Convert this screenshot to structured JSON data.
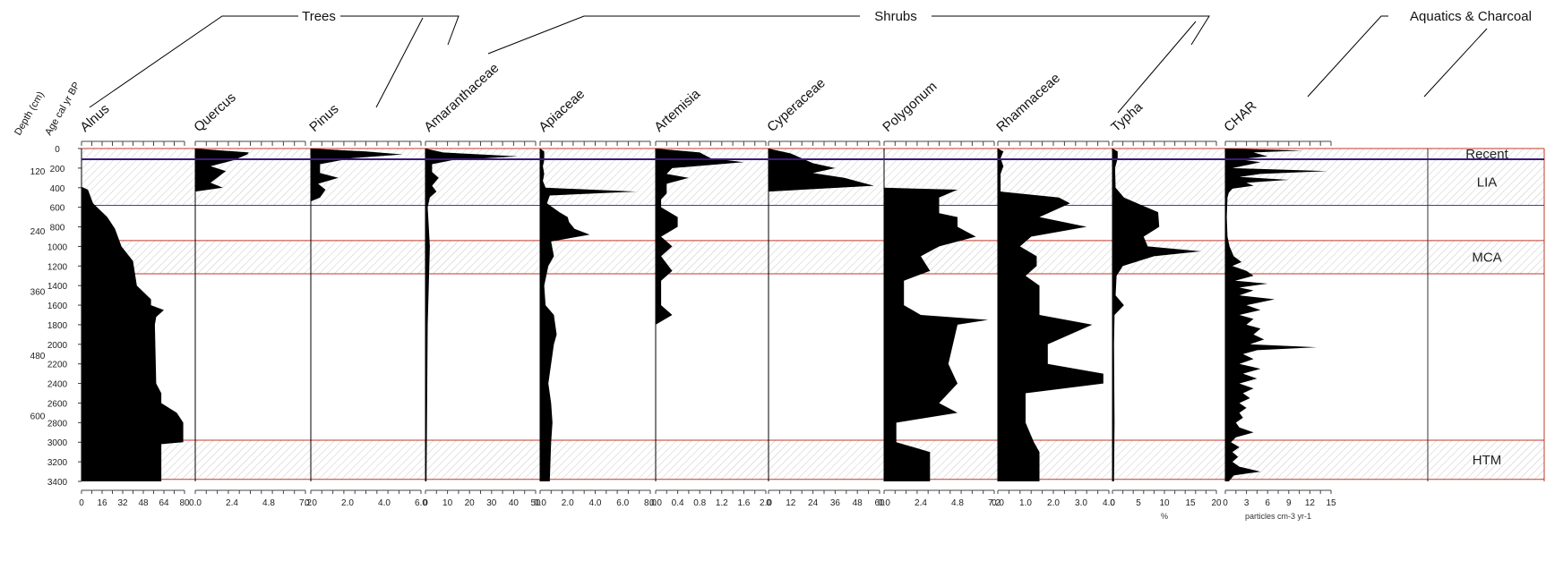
{
  "chart_data": {
    "type": "area",
    "y_axis_titles": [
      "Depth (cm)",
      "Age cal yr BP"
    ],
    "depth_ticks": [
      "120",
      "240",
      "360",
      "480",
      "600"
    ],
    "age_ticks": [
      "0",
      "200",
      "400",
      "600",
      "800",
      "1000",
      "1200",
      "1400",
      "1600",
      "1800",
      "2000",
      "2200",
      "2400",
      "2600",
      "2800",
      "3000",
      "3200",
      "3400"
    ],
    "age_range": [
      0,
      3400
    ],
    "groups": [
      {
        "label": "Trees",
        "from_panel": 0,
        "to_panel": 2
      },
      {
        "label": "Shrubs",
        "from_panel": 3,
        "to_panel": 8
      },
      {
        "label": "Aquatics & Charcoal",
        "from_panel": 9,
        "to_panel": 10
      }
    ],
    "zones": [
      {
        "label": "Recent",
        "from_age": 0,
        "to_age": 110,
        "color": "#c0392b"
      },
      {
        "label": "LIA",
        "from_age": 110,
        "to_age": 580,
        "color": "#3a3ad0"
      },
      {
        "label": "MCA",
        "from_age": 940,
        "to_age": 1280,
        "color": "#c0392b"
      },
      {
        "label": "HTM",
        "from_age": 2980,
        "to_age": 3380,
        "color": "#c0392b"
      }
    ],
    "recent_line_color": "#3b1a7a",
    "panels": [
      {
        "name": "Alnus",
        "ticks": [
          "0",
          "16",
          "32",
          "48",
          "64",
          "80"
        ],
        "max": 80,
        "profile": [
          [
            0,
            0
          ],
          [
            390,
            0
          ],
          [
            420,
            5
          ],
          [
            560,
            9
          ],
          [
            700,
            20
          ],
          [
            820,
            26
          ],
          [
            1000,
            31
          ],
          [
            1150,
            40
          ],
          [
            1400,
            43
          ],
          [
            1540,
            54
          ],
          [
            1600,
            54
          ],
          [
            1650,
            64
          ],
          [
            1720,
            58
          ],
          [
            1800,
            57
          ],
          [
            2400,
            58
          ],
          [
            2500,
            62
          ],
          [
            2600,
            62
          ],
          [
            2700,
            74
          ],
          [
            2800,
            79
          ],
          [
            3000,
            79
          ],
          [
            3020,
            62
          ],
          [
            3400,
            62
          ]
        ]
      },
      {
        "name": "Quercus",
        "ticks": [
          "0.0",
          "2.4",
          "4.8",
          "7.2"
        ],
        "max": 7.2,
        "profile": [
          [
            0,
            0
          ],
          [
            40,
            3.5
          ],
          [
            60,
            3.4
          ],
          [
            120,
            2.5
          ],
          [
            180,
            1.0
          ],
          [
            230,
            2.0
          ],
          [
            290,
            1.5
          ],
          [
            350,
            1.0
          ],
          [
            400,
            1.8
          ],
          [
            440,
            0
          ],
          [
            3400,
            0
          ]
        ]
      },
      {
        "name": "Pinus",
        "ticks": [
          "0.0",
          "2.0",
          "4.0",
          "6.0"
        ],
        "max": 6.0,
        "profile": [
          [
            0,
            0
          ],
          [
            30,
            3.0
          ],
          [
            60,
            5.0
          ],
          [
            100,
            2.2
          ],
          [
            160,
            0.5
          ],
          [
            250,
            0.5
          ],
          [
            300,
            1.5
          ],
          [
            360,
            0.4
          ],
          [
            420,
            0.8
          ],
          [
            500,
            0.5
          ],
          [
            540,
            0
          ],
          [
            3400,
            0
          ]
        ]
      },
      {
        "name": "Amaranthaceae",
        "ticks": [
          "0",
          "10",
          "20",
          "30",
          "40",
          "50"
        ],
        "max": 50,
        "profile": [
          [
            0,
            0
          ],
          [
            40,
            8
          ],
          [
            80,
            42
          ],
          [
            120,
            12
          ],
          [
            160,
            3
          ],
          [
            240,
            3
          ],
          [
            300,
            6
          ],
          [
            380,
            3
          ],
          [
            440,
            5
          ],
          [
            500,
            2
          ],
          [
            600,
            1
          ],
          [
            1000,
            2
          ],
          [
            1800,
            1
          ],
          [
            3400,
            0.5
          ]
        ]
      },
      {
        "name": "Apiaceae",
        "ticks": [
          "0.0",
          "2.0",
          "4.0",
          "6.0",
          "8.0"
        ],
        "max": 8.0,
        "profile": [
          [
            0,
            0
          ],
          [
            30,
            0.3
          ],
          [
            120,
            0.3
          ],
          [
            180,
            0.2
          ],
          [
            260,
            0.3
          ],
          [
            330,
            0.2
          ],
          [
            400,
            0.4
          ],
          [
            440,
            7.0
          ],
          [
            480,
            0.7
          ],
          [
            560,
            0.5
          ],
          [
            650,
            1.4
          ],
          [
            700,
            2.0
          ],
          [
            750,
            2.1
          ],
          [
            820,
            2.5
          ],
          [
            880,
            3.6
          ],
          [
            950,
            0.8
          ],
          [
            1100,
            1.0
          ],
          [
            1200,
            0.6
          ],
          [
            1400,
            0.3
          ],
          [
            1600,
            0.4
          ],
          [
            1700,
            1.0
          ],
          [
            1800,
            1.1
          ],
          [
            1900,
            1.2
          ],
          [
            2000,
            1.0
          ],
          [
            2400,
            0.6
          ],
          [
            2600,
            0.8
          ],
          [
            2800,
            0.9
          ],
          [
            3000,
            0.8
          ],
          [
            3400,
            0.7
          ]
        ]
      },
      {
        "name": "Artemisia",
        "ticks": [
          "0.0",
          "0.4",
          "0.8",
          "1.2",
          "1.6",
          "2.0"
        ],
        "max": 2.0,
        "profile": [
          [
            0,
            0
          ],
          [
            40,
            0.8
          ],
          [
            100,
            1.0
          ],
          [
            140,
            1.6
          ],
          [
            200,
            0.3
          ],
          [
            260,
            0.2
          ],
          [
            300,
            0.6
          ],
          [
            360,
            0.2
          ],
          [
            460,
            0.2
          ],
          [
            520,
            0.1
          ],
          [
            600,
            0.1
          ],
          [
            700,
            0.4
          ],
          [
            800,
            0.4
          ],
          [
            900,
            0.1
          ],
          [
            1000,
            0.3
          ],
          [
            1100,
            0.1
          ],
          [
            1250,
            0.3
          ],
          [
            1350,
            0.1
          ],
          [
            1600,
            0.1
          ],
          [
            1700,
            0.3
          ],
          [
            1800,
            0
          ],
          [
            3400,
            0
          ]
        ]
      },
      {
        "name": "Cyperaceae",
        "ticks": [
          "0",
          "12",
          "24",
          "36",
          "48",
          "60"
        ],
        "max": 60,
        "profile": [
          [
            0,
            0
          ],
          [
            50,
            12
          ],
          [
            150,
            24
          ],
          [
            200,
            36
          ],
          [
            250,
            24
          ],
          [
            300,
            41
          ],
          [
            340,
            49
          ],
          [
            380,
            57
          ],
          [
            440,
            0
          ],
          [
            3400,
            0
          ]
        ]
      },
      {
        "name": "Polygonum",
        "ticks": [
          "0.0",
          "2.4",
          "4.8",
          "7.2"
        ],
        "max": 7.2,
        "profile": [
          [
            0,
            0
          ],
          [
            400,
            0
          ],
          [
            420,
            4.8
          ],
          [
            500,
            3.6
          ],
          [
            660,
            3.6
          ],
          [
            700,
            4.8
          ],
          [
            800,
            4.8
          ],
          [
            900,
            6.0
          ],
          [
            1000,
            3.6
          ],
          [
            1100,
            2.4
          ],
          [
            1250,
            3.0
          ],
          [
            1350,
            1.3
          ],
          [
            1600,
            1.3
          ],
          [
            1700,
            2.4
          ],
          [
            1750,
            6.8
          ],
          [
            1800,
            4.8
          ],
          [
            2200,
            4.2
          ],
          [
            2400,
            4.8
          ],
          [
            2600,
            3.6
          ],
          [
            2700,
            4.8
          ],
          [
            2800,
            0.8
          ],
          [
            3000,
            0.8
          ],
          [
            3100,
            3.0
          ],
          [
            3400,
            3.0
          ]
        ]
      },
      {
        "name": "Rhamnaceae",
        "ticks": [
          "0.0",
          "1.0",
          "2.0",
          "3.0",
          "4.0"
        ],
        "max": 4.0,
        "profile": [
          [
            0,
            0
          ],
          [
            30,
            0.2
          ],
          [
            100,
            0.1
          ],
          [
            180,
            0.2
          ],
          [
            260,
            0.1
          ],
          [
            440,
            0.1
          ],
          [
            500,
            2.2
          ],
          [
            560,
            2.6
          ],
          [
            700,
            1.5
          ],
          [
            800,
            3.2
          ],
          [
            900,
            1.2
          ],
          [
            1000,
            0.8
          ],
          [
            1100,
            1.4
          ],
          [
            1200,
            1.4
          ],
          [
            1300,
            1.0
          ],
          [
            1400,
            1.5
          ],
          [
            1600,
            1.5
          ],
          [
            1700,
            1.5
          ],
          [
            1800,
            3.4
          ],
          [
            2000,
            1.8
          ],
          [
            2200,
            1.8
          ],
          [
            2300,
            3.8
          ],
          [
            2400,
            3.8
          ],
          [
            2500,
            1.0
          ],
          [
            2800,
            1.0
          ],
          [
            3000,
            1.3
          ],
          [
            3100,
            1.5
          ],
          [
            3400,
            1.5
          ]
        ]
      },
      {
        "name": "Typha",
        "ticks": [
          "0",
          "5",
          "10",
          "15",
          "20"
        ],
        "max": 20,
        "profile": [
          [
            0,
            0
          ],
          [
            30,
            1
          ],
          [
            100,
            1
          ],
          [
            200,
            0.5
          ],
          [
            400,
            0.6
          ],
          [
            500,
            2.2
          ],
          [
            560,
            4.8
          ],
          [
            650,
            8.8
          ],
          [
            800,
            9.0
          ],
          [
            900,
            6.0
          ],
          [
            1000,
            6.8
          ],
          [
            1050,
            17
          ],
          [
            1100,
            8
          ],
          [
            1200,
            2
          ],
          [
            1300,
            0.8
          ],
          [
            1500,
            0.6
          ],
          [
            1600,
            2.2
          ],
          [
            1700,
            0.4
          ],
          [
            2000,
            0.3
          ],
          [
            2800,
            0.4
          ],
          [
            3400,
            0.3
          ]
        ]
      },
      {
        "name": "CHAR",
        "ticks": [
          "0",
          "3",
          "6",
          "9",
          "12",
          "15"
        ],
        "max": 15,
        "profile": [
          [
            0,
            0
          ],
          [
            20,
            11
          ],
          [
            40,
            4
          ],
          [
            80,
            6
          ],
          [
            110,
            2
          ],
          [
            140,
            5
          ],
          [
            170,
            3
          ],
          [
            200,
            1
          ],
          [
            230,
            14.5
          ],
          [
            260,
            5
          ],
          [
            290,
            2
          ],
          [
            320,
            9
          ],
          [
            350,
            3
          ],
          [
            380,
            4
          ],
          [
            410,
            1
          ],
          [
            450,
            0.5
          ],
          [
            500,
            0.3
          ],
          [
            700,
            0.2
          ],
          [
            900,
            0.3
          ],
          [
            1000,
            0.6
          ],
          [
            1100,
            1.2
          ],
          [
            1160,
            2.3
          ],
          [
            1200,
            1.0
          ],
          [
            1250,
            3.0
          ],
          [
            1300,
            4.0
          ],
          [
            1350,
            1.4
          ],
          [
            1380,
            6.0
          ],
          [
            1420,
            2.0
          ],
          [
            1450,
            4.0
          ],
          [
            1500,
            2.0
          ],
          [
            1540,
            7.0
          ],
          [
            1600,
            3.0
          ],
          [
            1650,
            5.0
          ],
          [
            1700,
            2.0
          ],
          [
            1740,
            4.0
          ],
          [
            1800,
            3.0
          ],
          [
            1840,
            5.0
          ],
          [
            1900,
            4.0
          ],
          [
            1950,
            5.5
          ],
          [
            2000,
            3.5
          ],
          [
            2030,
            13.0
          ],
          [
            2060,
            4.5
          ],
          [
            2100,
            2.5
          ],
          [
            2150,
            4.0
          ],
          [
            2200,
            2.0
          ],
          [
            2250,
            5.0
          ],
          [
            2300,
            2.5
          ],
          [
            2350,
            4.5
          ],
          [
            2400,
            2.0
          ],
          [
            2450,
            4.0
          ],
          [
            2500,
            2.5
          ],
          [
            2550,
            3.5
          ],
          [
            2600,
            2.0
          ],
          [
            2650,
            3.0
          ],
          [
            2700,
            2.0
          ],
          [
            2750,
            2.5
          ],
          [
            2800,
            1.5
          ],
          [
            2850,
            2.0
          ],
          [
            2900,
            4.0
          ],
          [
            2950,
            1.5
          ],
          [
            3000,
            0.8
          ],
          [
            3050,
            2.0
          ],
          [
            3100,
            1.0
          ],
          [
            3150,
            1.8
          ],
          [
            3200,
            1.0
          ],
          [
            3250,
            2.0
          ],
          [
            3300,
            5.0
          ],
          [
            3340,
            1.2
          ],
          [
            3400,
            0.5
          ]
        ]
      }
    ],
    "x_unit_labels": [
      {
        "panel": 9,
        "text": "%"
      },
      {
        "panel": 10,
        "text": "particles cm-3 yr-1"
      }
    ]
  }
}
